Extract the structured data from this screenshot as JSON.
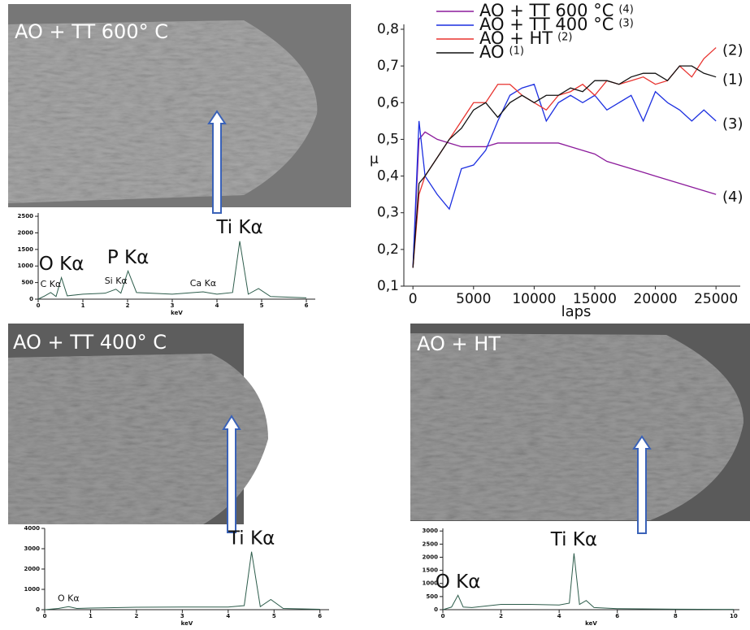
{
  "images": [
    {
      "label": "AO + TT 600° C"
    },
    {
      "label": "AO + TT 400° C"
    },
    {
      "label": "AO + HT"
    }
  ],
  "chart_data": [
    {
      "type": "line",
      "xlabel": "laps",
      "ylabel": "µ",
      "x": [
        0,
        500,
        1000,
        2000,
        3000,
        4000,
        5000,
        6000,
        7000,
        8000,
        9000,
        10000,
        11000,
        12000,
        13000,
        14000,
        15000,
        16000,
        17000,
        18000,
        19000,
        20000,
        21000,
        22000,
        23000,
        24000,
        25000
      ],
      "xlim": [
        -750,
        27000
      ],
      "xticks": [
        0,
        5000,
        10000,
        15000,
        20000,
        25000
      ],
      "ylim": [
        0.1,
        0.8
      ],
      "yticks": [
        {
          "value": 0.1,
          "label": "0,1"
        },
        {
          "value": 0.2,
          "label": "0,2"
        },
        {
          "value": 0.3,
          "label": "0,3"
        },
        {
          "value": 0.4,
          "label": "0,4"
        },
        {
          "value": 0.5,
          "label": "0,5"
        },
        {
          "value": 0.6,
          "label": "0,6"
        },
        {
          "value": 0.7,
          "label": "0,7"
        },
        {
          "value": 0.8,
          "label": "0,8"
        }
      ],
      "series": [
        {
          "name": "AO + TT 600 °C",
          "tag": "(4)",
          "color": "#8b1a9b",
          "values": [
            0.15,
            0.5,
            0.52,
            0.5,
            0.49,
            0.48,
            0.48,
            0.48,
            0.49,
            0.49,
            0.49,
            0.49,
            0.49,
            0.49,
            0.48,
            0.47,
            0.46,
            0.44,
            0.43,
            0.42,
            0.41,
            0.4,
            0.39,
            0.38,
            0.37,
            0.36,
            0.35
          ]
        },
        {
          "name": "AO + TT 400 °C",
          "tag": "(3)",
          "color": "#1c2fe0",
          "values": [
            0.15,
            0.55,
            0.4,
            0.35,
            0.31,
            0.42,
            0.43,
            0.47,
            0.55,
            0.62,
            0.64,
            0.65,
            0.55,
            0.6,
            0.62,
            0.6,
            0.62,
            0.58,
            0.6,
            0.62,
            0.55,
            0.63,
            0.6,
            0.58,
            0.55,
            0.58,
            0.55
          ]
        },
        {
          "name": "AO + HT",
          "tag": "(2)",
          "color": "#e8332f",
          "values": [
            0.15,
            0.35,
            0.4,
            0.45,
            0.5,
            0.55,
            0.6,
            0.6,
            0.65,
            0.65,
            0.62,
            0.6,
            0.58,
            0.62,
            0.63,
            0.65,
            0.62,
            0.66,
            0.65,
            0.66,
            0.67,
            0.65,
            0.66,
            0.7,
            0.67,
            0.72,
            0.75
          ]
        },
        {
          "name": "AO",
          "tag": "(1)",
          "color": "#111111",
          "values": [
            0.15,
            0.38,
            0.4,
            0.45,
            0.5,
            0.53,
            0.58,
            0.6,
            0.56,
            0.6,
            0.62,
            0.6,
            0.62,
            0.62,
            0.64,
            0.63,
            0.66,
            0.66,
            0.65,
            0.67,
            0.68,
            0.68,
            0.66,
            0.7,
            0.7,
            0.68,
            0.67
          ]
        }
      ]
    },
    {
      "type": "line",
      "xlabel": "keV",
      "color": "#2e5d4c",
      "x": [
        0,
        0.15,
        0.28,
        0.4,
        0.52,
        0.65,
        1,
        1.5,
        1.74,
        1.85,
        2.01,
        2.2,
        3,
        3.69,
        4,
        4.35,
        4.51,
        4.7,
        4.93,
        5.2,
        6
      ],
      "values": [
        0,
        100,
        200,
        80,
        650,
        100,
        150,
        180,
        300,
        180,
        850,
        200,
        150,
        220,
        150,
        200,
        1750,
        150,
        320,
        80,
        40
      ],
      "xlim": [
        0,
        6.2
      ],
      "xticks": [
        0,
        1,
        2,
        3,
        4,
        5,
        6
      ],
      "ylim": [
        0,
        2600
      ],
      "yticks": [
        0,
        500,
        1000,
        1500,
        2000,
        2500
      ],
      "peak_labels": [
        {
          "text": "C Kα",
          "x": 0.28
        },
        {
          "text": "O Kα",
          "x": 0.52
        },
        {
          "text": "Si Kα",
          "x": 1.74
        },
        {
          "text": "P Kα",
          "x": 2.01
        },
        {
          "text": "Ca Kα",
          "x": 3.69
        },
        {
          "text": "Ti Kα",
          "x": 4.51
        }
      ]
    },
    {
      "type": "line",
      "xlabel": "keV",
      "color": "#2e5d4c",
      "x": [
        0,
        0.3,
        0.52,
        0.7,
        1,
        2,
        3,
        4,
        4.35,
        4.51,
        4.7,
        4.93,
        5.2,
        6
      ],
      "values": [
        0,
        60,
        150,
        60,
        80,
        120,
        130,
        130,
        200,
        2850,
        150,
        500,
        60,
        20
      ],
      "xlim": [
        0,
        6.2
      ],
      "xticks": [
        0,
        1,
        2,
        3,
        4,
        5,
        6
      ],
      "ylim": [
        0,
        4000
      ],
      "yticks": [
        0,
        1000,
        2000,
        3000,
        4000
      ],
      "peak_labels": [
        {
          "text": "O Kα",
          "x": 0.52
        },
        {
          "text": "Ti Kα",
          "x": 4.51
        }
      ]
    },
    {
      "type": "line",
      "xlabel": "keV",
      "color": "#2e5d4c",
      "x": [
        0,
        0.3,
        0.52,
        0.7,
        1,
        2,
        3,
        4,
        4.35,
        4.51,
        4.7,
        4.93,
        5.2,
        6,
        8,
        10
      ],
      "values": [
        0,
        100,
        550,
        100,
        80,
        200,
        200,
        180,
        250,
        2150,
        200,
        350,
        80,
        40,
        20,
        10
      ],
      "xlim": [
        0,
        10.2
      ],
      "xticks": [
        0,
        2,
        4,
        6,
        8,
        10
      ],
      "ylim": [
        0,
        3100
      ],
      "yticks": [
        0,
        500,
        1000,
        1500,
        2000,
        2500,
        3000
      ],
      "peak_labels": [
        {
          "text": "O Kα",
          "x": 0.52
        },
        {
          "text": "Ti Kα",
          "x": 4.51
        }
      ]
    }
  ]
}
